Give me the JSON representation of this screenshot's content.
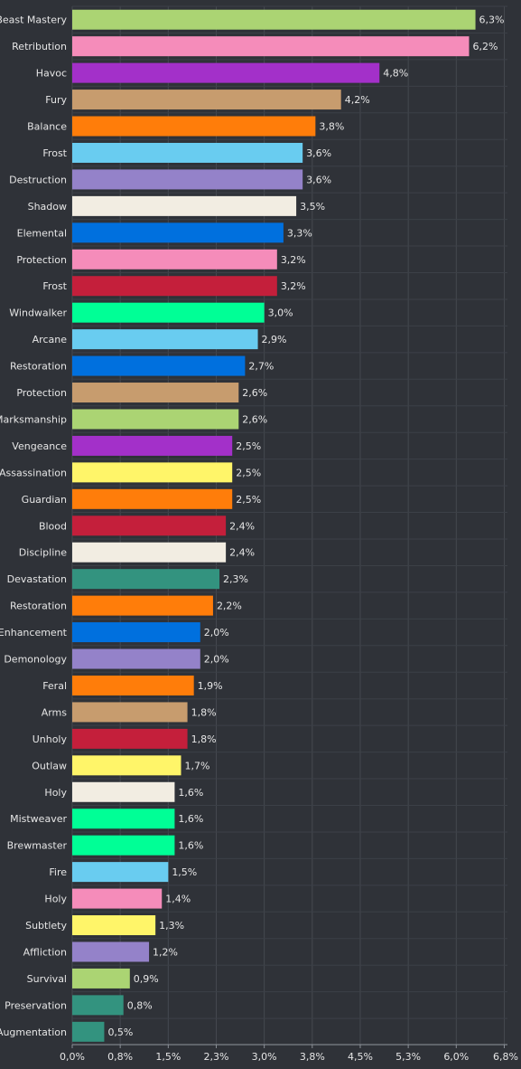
{
  "chart_data": {
    "type": "bar",
    "orientation": "horizontal",
    "grid": true,
    "title": "",
    "xlabel": "",
    "ylabel": "",
    "xlim": [
      0,
      6.8
    ],
    "xticks": [
      {
        "value": 0,
        "label": "0,0%"
      },
      {
        "value": 0.75,
        "label": "0,8%"
      },
      {
        "value": 1.5,
        "label": "1,5%"
      },
      {
        "value": 2.25,
        "label": "2,3%"
      },
      {
        "value": 3.0,
        "label": "3,0%"
      },
      {
        "value": 3.75,
        "label": "3,8%"
      },
      {
        "value": 4.5,
        "label": "4,5%"
      },
      {
        "value": 5.25,
        "label": "5,3%"
      },
      {
        "value": 6.0,
        "label": "6,0%"
      },
      {
        "value": 6.75,
        "label": "6,8%"
      }
    ],
    "categories": [
      "Beast Mastery",
      "Retribution",
      "Havoc",
      "Fury",
      "Balance",
      "Frost",
      "Destruction",
      "Shadow",
      "Elemental",
      "Protection",
      "Frost",
      "Windwalker",
      "Arcane",
      "Restoration",
      "Protection",
      "Marksmanship",
      "Vengeance",
      "Assassination",
      "Guardian",
      "Blood",
      "Discipline",
      "Devastation",
      "Restoration",
      "Enhancement",
      "Demonology",
      "Feral",
      "Arms",
      "Unholy",
      "Outlaw",
      "Holy",
      "Mistweaver",
      "Brewmaster",
      "Fire",
      "Holy",
      "Subtlety",
      "Affliction",
      "Survival",
      "Preservation",
      "Augmentation"
    ],
    "values": [
      6.3,
      6.2,
      4.8,
      4.2,
      3.8,
      3.6,
      3.6,
      3.5,
      3.3,
      3.2,
      3.2,
      3.0,
      2.9,
      2.7,
      2.6,
      2.6,
      2.5,
      2.5,
      2.5,
      2.4,
      2.4,
      2.3,
      2.2,
      2.0,
      2.0,
      1.9,
      1.8,
      1.8,
      1.7,
      1.6,
      1.6,
      1.6,
      1.5,
      1.4,
      1.3,
      1.2,
      0.9,
      0.8,
      0.5
    ],
    "value_labels": [
      "6,3%",
      "6,2%",
      "4,8%",
      "4,2%",
      "3,8%",
      "3,6%",
      "3,6%",
      "3,5%",
      "3,3%",
      "3,2%",
      "3,2%",
      "3,0%",
      "2,9%",
      "2,7%",
      "2,6%",
      "2,6%",
      "2,5%",
      "2,5%",
      "2,5%",
      "2,4%",
      "2,4%",
      "2,3%",
      "2,2%",
      "2,0%",
      "2,0%",
      "1,9%",
      "1,8%",
      "1,8%",
      "1,7%",
      "1,6%",
      "1,6%",
      "1,6%",
      "1,5%",
      "1,4%",
      "1,3%",
      "1,2%",
      "0,9%",
      "0,8%",
      "0,5%"
    ],
    "colors": [
      "#abd473",
      "#f58cba",
      "#a330c9",
      "#c79c6e",
      "#ff7d0a",
      "#69ccf0",
      "#9482c9",
      "#f2ede2",
      "#0070de",
      "#f58cba",
      "#c41f3b",
      "#00ff96",
      "#69ccf0",
      "#0070de",
      "#c79c6e",
      "#abd473",
      "#a330c9",
      "#fff569",
      "#ff7d0a",
      "#c41f3b",
      "#f2ede2",
      "#33937f",
      "#ff7d0a",
      "#0070de",
      "#9482c9",
      "#ff7d0a",
      "#c79c6e",
      "#c41f3b",
      "#fff569",
      "#f2ede2",
      "#00ff96",
      "#00ff96",
      "#69ccf0",
      "#f58cba",
      "#fff569",
      "#9482c9",
      "#abd473",
      "#33937f",
      "#33937f"
    ]
  }
}
